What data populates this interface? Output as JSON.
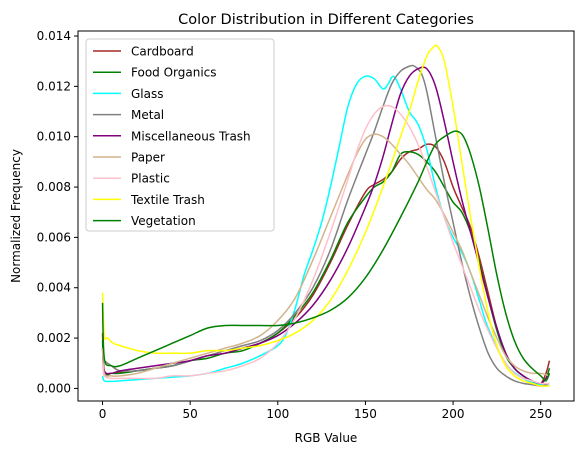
{
  "chart_data": {
    "type": "line",
    "title": "Color Distribution in Different Categories",
    "xlabel": "RGB Value",
    "ylabel": "Normalized Frequency",
    "xlim": [
      -14,
      269
    ],
    "ylim": [
      -0.0005,
      0.0142
    ],
    "xticks": [
      0,
      50,
      100,
      150,
      200,
      250
    ],
    "xtick_labels": [
      "0",
      "50",
      "100",
      "150",
      "200",
      "250"
    ],
    "yticks": [
      0.0,
      0.002,
      0.004,
      0.006,
      0.008,
      0.01,
      0.012,
      0.014
    ],
    "ytick_labels": [
      "0.000",
      "0.002",
      "0.004",
      "0.006",
      "0.008",
      "0.010",
      "0.012",
      "0.014"
    ],
    "grid": false,
    "legend_position": "upper-left",
    "series": [
      {
        "name": "Cardboard",
        "color": "#a52a2a",
        "x": [
          0,
          1,
          5,
          10,
          20,
          30,
          40,
          50,
          60,
          70,
          80,
          90,
          100,
          110,
          120,
          130,
          140,
          150,
          155,
          160,
          165,
          170,
          175,
          180,
          185,
          190,
          195,
          200,
          205,
          210,
          215,
          220,
          225,
          230,
          235,
          240,
          245,
          250,
          253,
          255
        ],
        "y": [
          0.0022,
          0.0007,
          0.0006,
          0.00065,
          0.0007,
          0.0008,
          0.0009,
          0.0011,
          0.0013,
          0.0014,
          0.0016,
          0.0018,
          0.0022,
          0.0028,
          0.0037,
          0.005,
          0.0065,
          0.0078,
          0.0081,
          0.0083,
          0.0086,
          0.0091,
          0.0094,
          0.0095,
          0.0097,
          0.0096,
          0.009,
          0.008,
          0.0072,
          0.0064,
          0.0052,
          0.0038,
          0.0024,
          0.0014,
          0.0008,
          0.0005,
          0.0003,
          0.0002,
          0.0006,
          0.0011
        ]
      },
      {
        "name": "Food Organics",
        "color": "#008000",
        "x": [
          0,
          1,
          5,
          10,
          20,
          30,
          40,
          50,
          60,
          70,
          80,
          90,
          100,
          110,
          120,
          130,
          140,
          150,
          155,
          160,
          165,
          170,
          175,
          180,
          185,
          190,
          195,
          200,
          205,
          210,
          215,
          220,
          225,
          230,
          235,
          240,
          245,
          250,
          253,
          255
        ],
        "y": [
          0.0019,
          0.0006,
          0.0006,
          0.0006,
          0.0007,
          0.0008,
          0.0009,
          0.0011,
          0.0012,
          0.0014,
          0.0015,
          0.0018,
          0.0022,
          0.0029,
          0.0038,
          0.0051,
          0.0066,
          0.0076,
          0.008,
          0.0082,
          0.0086,
          0.0093,
          0.0094,
          0.0093,
          0.009,
          0.0086,
          0.008,
          0.0074,
          0.007,
          0.0062,
          0.005,
          0.0036,
          0.0023,
          0.0013,
          0.0008,
          0.0005,
          0.0003,
          0.0002,
          0.0004,
          0.0008
        ]
      },
      {
        "name": "Glass",
        "color": "#00ffff",
        "x": [
          0,
          1,
          5,
          10,
          20,
          30,
          40,
          50,
          60,
          70,
          80,
          90,
          100,
          105,
          110,
          115,
          120,
          125,
          130,
          135,
          140,
          145,
          150,
          155,
          160,
          163,
          166,
          170,
          175,
          180,
          185,
          190,
          195,
          200,
          205,
          210,
          215,
          220,
          230,
          240,
          250,
          255
        ],
        "y": [
          0.0005,
          0.0003,
          0.00028,
          0.0003,
          0.00035,
          0.0004,
          0.00045,
          0.0005,
          0.0006,
          0.0008,
          0.001,
          0.0013,
          0.0017,
          0.0022,
          0.0032,
          0.0045,
          0.0055,
          0.0066,
          0.008,
          0.0096,
          0.0112,
          0.0121,
          0.0124,
          0.0123,
          0.0119,
          0.0121,
          0.0124,
          0.0119,
          0.011,
          0.0105,
          0.0095,
          0.008,
          0.0068,
          0.006,
          0.0054,
          0.0046,
          0.0035,
          0.0024,
          0.001,
          0.0004,
          0.00015,
          0.0001
        ]
      },
      {
        "name": "Metal",
        "color": "#808080",
        "x": [
          0,
          1,
          5,
          10,
          20,
          30,
          40,
          50,
          60,
          70,
          80,
          90,
          100,
          110,
          120,
          130,
          140,
          150,
          155,
          160,
          165,
          170,
          175,
          178,
          182,
          185,
          190,
          195,
          200,
          205,
          210,
          215,
          220,
          225,
          230,
          235,
          240,
          245,
          250,
          255
        ],
        "y": [
          0.0012,
          0.0011,
          0.0009,
          0.0007,
          0.0007,
          0.0008,
          0.0009,
          0.0011,
          0.0013,
          0.0015,
          0.0017,
          0.0019,
          0.0023,
          0.003,
          0.004,
          0.0055,
          0.0075,
          0.0093,
          0.0102,
          0.0112,
          0.0121,
          0.0126,
          0.0128,
          0.0128,
          0.0125,
          0.0118,
          0.01,
          0.0082,
          0.0066,
          0.005,
          0.0036,
          0.0024,
          0.0014,
          0.0008,
          0.0005,
          0.0003,
          0.0002,
          0.00015,
          0.0001,
          0.0002
        ]
      },
      {
        "name": "Miscellaneous Trash",
        "color": "#800080",
        "x": [
          0,
          1,
          5,
          10,
          20,
          30,
          40,
          50,
          60,
          70,
          80,
          90,
          100,
          110,
          120,
          130,
          140,
          150,
          155,
          160,
          165,
          170,
          175,
          180,
          185,
          190,
          195,
          200,
          205,
          210,
          215,
          220,
          225,
          230,
          235,
          240,
          245,
          250,
          253,
          255
        ],
        "y": [
          0.0016,
          0.0007,
          0.0006,
          0.0007,
          0.0008,
          0.0009,
          0.001,
          0.0011,
          0.0013,
          0.0014,
          0.0016,
          0.0018,
          0.0021,
          0.0026,
          0.0033,
          0.0043,
          0.0056,
          0.0072,
          0.0081,
          0.0092,
          0.0105,
          0.0117,
          0.0124,
          0.0127,
          0.0127,
          0.012,
          0.0106,
          0.009,
          0.0075,
          0.0062,
          0.0049,
          0.0036,
          0.0024,
          0.0014,
          0.0008,
          0.0005,
          0.0003,
          0.0002,
          0.0004,
          0.0006
        ]
      },
      {
        "name": "Paper",
        "color": "#d2b48c",
        "x": [
          0,
          1,
          5,
          10,
          20,
          30,
          40,
          50,
          60,
          70,
          80,
          90,
          100,
          110,
          120,
          130,
          140,
          145,
          150,
          155,
          160,
          165,
          170,
          175,
          180,
          185,
          190,
          195,
          200,
          205,
          210,
          215,
          220,
          225,
          230,
          235,
          240,
          245,
          250,
          255
        ],
        "y": [
          0.0016,
          0.0006,
          0.0005,
          0.0005,
          0.0006,
          0.0008,
          0.001,
          0.0012,
          0.0014,
          0.0016,
          0.0018,
          0.0021,
          0.0027,
          0.0036,
          0.0051,
          0.0068,
          0.0085,
          0.0093,
          0.0099,
          0.0101,
          0.01,
          0.0097,
          0.0093,
          0.0089,
          0.0084,
          0.0079,
          0.0075,
          0.0069,
          0.0062,
          0.0055,
          0.0046,
          0.0037,
          0.0028,
          0.002,
          0.0013,
          0.0009,
          0.0007,
          0.0006,
          0.0006,
          0.0005
        ]
      },
      {
        "name": "Plastic",
        "color": "#ffc0cb",
        "x": [
          0,
          1,
          5,
          10,
          20,
          30,
          40,
          50,
          60,
          70,
          80,
          90,
          100,
          110,
          120,
          130,
          140,
          145,
          150,
          155,
          160,
          165,
          170,
          175,
          180,
          185,
          190,
          195,
          200,
          205,
          210,
          215,
          220,
          225,
          230,
          235,
          240,
          245,
          250,
          255
        ],
        "y": [
          0.001,
          0.0005,
          0.0004,
          0.0004,
          0.0004,
          0.0004,
          0.0005,
          0.0005,
          0.0006,
          0.0007,
          0.0009,
          0.0012,
          0.0018,
          0.0028,
          0.0043,
          0.0062,
          0.0083,
          0.0094,
          0.0103,
          0.0109,
          0.0112,
          0.0112,
          0.0109,
          0.0104,
          0.0097,
          0.0088,
          0.0078,
          0.0068,
          0.0058,
          0.0049,
          0.004,
          0.0031,
          0.0023,
          0.0016,
          0.001,
          0.0006,
          0.0004,
          0.0003,
          0.0002,
          0.0002
        ]
      },
      {
        "name": "Textile Trash",
        "color": "#ffff00",
        "x": [
          0,
          1,
          3,
          6,
          10,
          20,
          30,
          40,
          50,
          60,
          70,
          80,
          90,
          100,
          110,
          120,
          130,
          140,
          150,
          160,
          170,
          175,
          180,
          185,
          188,
          191,
          195,
          200,
          205,
          210,
          215,
          220,
          225,
          230,
          235,
          240,
          245,
          250,
          255
        ],
        "y": [
          0.0038,
          0.0021,
          0.002,
          0.0018,
          0.0017,
          0.0015,
          0.0014,
          0.0014,
          0.0014,
          0.0015,
          0.0015,
          0.0016,
          0.0017,
          0.0019,
          0.0022,
          0.0027,
          0.0035,
          0.0047,
          0.0062,
          0.008,
          0.01,
          0.011,
          0.0122,
          0.0132,
          0.0135,
          0.0136,
          0.013,
          0.0112,
          0.009,
          0.0068,
          0.0048,
          0.003,
          0.0017,
          0.0009,
          0.0005,
          0.0003,
          0.0002,
          0.0001,
          0.0001
        ]
      },
      {
        "name": "Vegetation",
        "color": "#008000",
        "x": [
          0,
          1,
          5,
          10,
          20,
          30,
          40,
          50,
          60,
          70,
          80,
          90,
          100,
          110,
          120,
          130,
          140,
          150,
          160,
          170,
          180,
          185,
          190,
          195,
          200,
          203,
          206,
          210,
          215,
          220,
          225,
          230,
          235,
          240,
          245,
          250,
          253,
          255
        ],
        "y": [
          0.0034,
          0.0012,
          0.0009,
          0.0009,
          0.0012,
          0.0015,
          0.0018,
          0.0021,
          0.0024,
          0.0025,
          0.0025,
          0.0025,
          0.0025,
          0.0026,
          0.0028,
          0.0031,
          0.0036,
          0.0044,
          0.0055,
          0.0068,
          0.0082,
          0.009,
          0.0097,
          0.01,
          0.0102,
          0.0102,
          0.01,
          0.0093,
          0.008,
          0.0063,
          0.0045,
          0.003,
          0.0019,
          0.0012,
          0.0008,
          0.0005,
          0.0003,
          0.0006
        ]
      }
    ]
  }
}
